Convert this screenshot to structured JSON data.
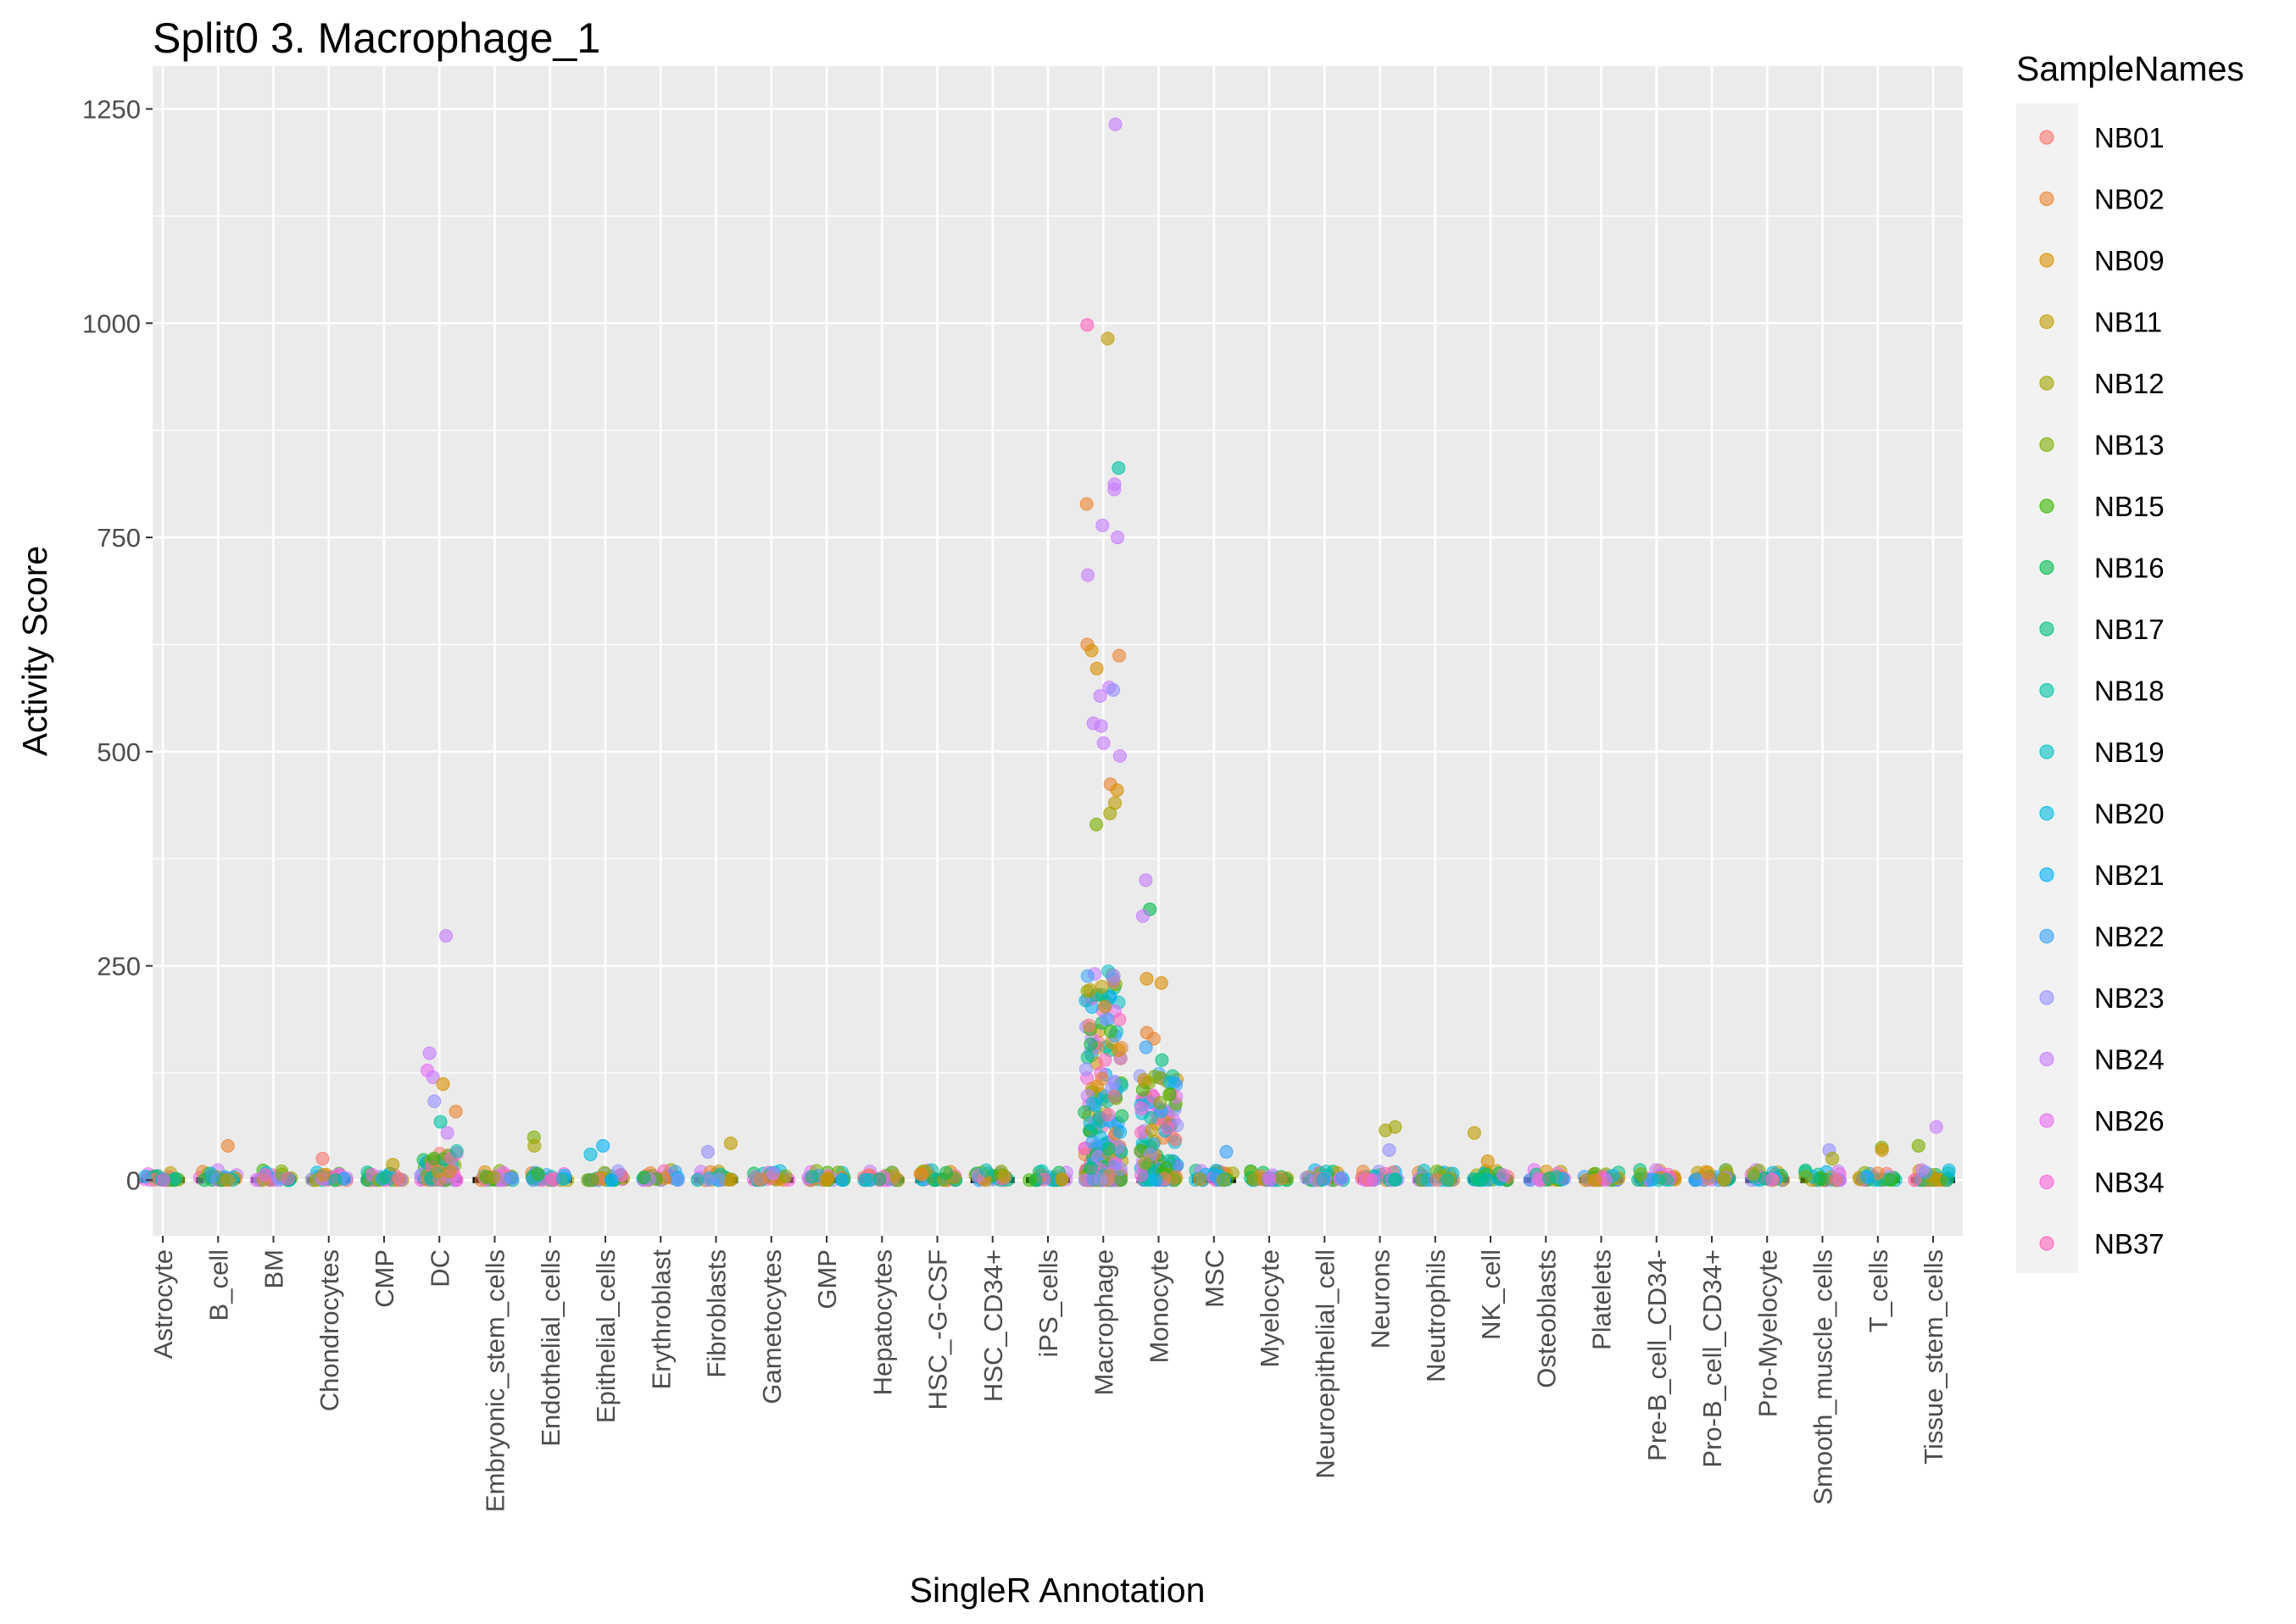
{
  "chart_data": {
    "type": "scatter",
    "title": "Split0 3. Macrophage_1",
    "xlabel": "SingleR Annotation",
    "ylabel": "Activity Score",
    "ylim": [
      -65,
      1300
    ],
    "yticks": [
      0,
      250,
      500,
      750,
      1000,
      1250
    ],
    "grid": true,
    "legend_placement": "right",
    "categories": [
      "Astrocyte",
      "B_cell",
      "BM",
      "Chondrocytes",
      "CMP",
      "DC",
      "Embryonic_stem_cells",
      "Endothelial_cells",
      "Epithelial_cells",
      "Erythroblast",
      "Fibroblasts",
      "Gametocytes",
      "GMP",
      "Hepatocytes",
      "HSC_-G-CSF",
      "HSC_CD34+",
      "iPS_cells",
      "Macrophage",
      "Monocyte",
      "MSC",
      "Myelocyte",
      "Neuroepithelial_cell",
      "Neurons",
      "Neutrophils",
      "NK_cell",
      "Osteoblasts",
      "Platelets",
      "Pre-B_cell_CD34-",
      "Pro-B_cell_CD34+",
      "Pro-Myelocyte",
      "Smooth_muscle_cells",
      "T_cells",
      "Tissue_stem_cells"
    ],
    "legend": {
      "title": "SampleNames",
      "entries": [
        {
          "name": "NB01",
          "color": "#F8766D"
        },
        {
          "name": "NB02",
          "color": "#EA8331"
        },
        {
          "name": "NB09",
          "color": "#D89000"
        },
        {
          "name": "NB11",
          "color": "#C09B00"
        },
        {
          "name": "NB12",
          "color": "#A3A500"
        },
        {
          "name": "NB13",
          "color": "#7CAE00"
        },
        {
          "name": "NB15",
          "color": "#39B600"
        },
        {
          "name": "NB16",
          "color": "#00BB4E"
        },
        {
          "name": "NB17",
          "color": "#00BF7D"
        },
        {
          "name": "NB18",
          "color": "#00C1A3"
        },
        {
          "name": "NB19",
          "color": "#00BFC4"
        },
        {
          "name": "NB20",
          "color": "#00BAE0"
        },
        {
          "name": "NB21",
          "color": "#00B0F6"
        },
        {
          "name": "NB22",
          "color": "#35A2FF"
        },
        {
          "name": "NB23",
          "color": "#9590FF"
        },
        {
          "name": "NB24",
          "color": "#C77CFF"
        },
        {
          "name": "NB26",
          "color": "#E76BF3"
        },
        {
          "name": "NB34",
          "color": "#FA62DB"
        },
        {
          "name": "NB37",
          "color": "#FF62BC"
        }
      ]
    },
    "median_ticks": "black horizontal median bar at 0 for every category",
    "points": [
      {
        "category": "DC",
        "series": "NB24",
        "y": 285
      },
      {
        "category": "DC",
        "series": "NB24",
        "y": 148
      },
      {
        "category": "DC",
        "series": "NB26",
        "y": 128
      },
      {
        "category": "DC",
        "series": "NB24",
        "y": 120
      },
      {
        "category": "DC",
        "series": "NB09",
        "y": 112
      },
      {
        "category": "DC",
        "series": "NB23",
        "y": 92
      },
      {
        "category": "DC",
        "series": "NB02",
        "y": 80
      },
      {
        "category": "DC",
        "series": "NB18",
        "y": 68
      },
      {
        "category": "DC",
        "series": "NB24",
        "y": 55
      },
      {
        "category": "B_cell",
        "series": "NB02",
        "y": 40
      },
      {
        "category": "Chondrocytes",
        "series": "NB01",
        "y": 25
      },
      {
        "category": "CMP",
        "series": "NB11",
        "y": 18
      },
      {
        "category": "Endothelial_cells",
        "series": "NB13",
        "y": 50
      },
      {
        "category": "Endothelial_cells",
        "series": "NB12",
        "y": 40
      },
      {
        "category": "Epithelial_cells",
        "series": "NB21",
        "y": 40
      },
      {
        "category": "Epithelial_cells",
        "series": "NB20",
        "y": 30
      },
      {
        "category": "Fibroblasts",
        "series": "NB11",
        "y": 43
      },
      {
        "category": "Fibroblasts",
        "series": "NB23",
        "y": 33
      },
      {
        "category": "Macrophage",
        "series": "NB24",
        "y": 1232
      },
      {
        "category": "Macrophage",
        "series": "NB37",
        "y": 998
      },
      {
        "category": "Macrophage",
        "series": "NB11",
        "y": 982
      },
      {
        "category": "Macrophage",
        "series": "NB18",
        "y": 831
      },
      {
        "category": "Macrophage",
        "series": "NB24",
        "y": 812
      },
      {
        "category": "Macrophage",
        "series": "NB24",
        "y": 806
      },
      {
        "category": "Macrophage",
        "series": "NB02",
        "y": 789
      },
      {
        "category": "Macrophage",
        "series": "NB24",
        "y": 764
      },
      {
        "category": "Macrophage",
        "series": "NB24",
        "y": 750
      },
      {
        "category": "Macrophage",
        "series": "NB24",
        "y": 706
      },
      {
        "category": "Macrophage",
        "series": "NB02",
        "y": 625
      },
      {
        "category": "Macrophage",
        "series": "NB09",
        "y": 618
      },
      {
        "category": "Macrophage",
        "series": "NB02",
        "y": 612
      },
      {
        "category": "Macrophage",
        "series": "NB09",
        "y": 597
      },
      {
        "category": "Macrophage",
        "series": "NB24",
        "y": 575
      },
      {
        "category": "Macrophage",
        "series": "NB23",
        "y": 572
      },
      {
        "category": "Macrophage",
        "series": "NB24",
        "y": 565
      },
      {
        "category": "Macrophage",
        "series": "NB24",
        "y": 533
      },
      {
        "category": "Macrophage",
        "series": "NB24",
        "y": 530
      },
      {
        "category": "Macrophage",
        "series": "NB24",
        "y": 510
      },
      {
        "category": "Macrophage",
        "series": "NB24",
        "y": 495
      },
      {
        "category": "Macrophage",
        "series": "NB02",
        "y": 462
      },
      {
        "category": "Macrophage",
        "series": "NB09",
        "y": 455
      },
      {
        "category": "Macrophage",
        "series": "NB11",
        "y": 440
      },
      {
        "category": "Macrophage",
        "series": "NB12",
        "y": 428
      },
      {
        "category": "Macrophage",
        "series": "NB13",
        "y": 415
      },
      {
        "category": "Monocyte",
        "series": "NB24",
        "y": 350
      },
      {
        "category": "Monocyte",
        "series": "NB16",
        "y": 316
      },
      {
        "category": "Monocyte",
        "series": "NB24",
        "y": 308
      },
      {
        "category": "Monocyte",
        "series": "NB09",
        "y": 235
      },
      {
        "category": "Monocyte",
        "series": "NB09",
        "y": 230
      },
      {
        "category": "Monocyte",
        "series": "NB02",
        "y": 172
      },
      {
        "category": "Monocyte",
        "series": "NB02",
        "y": 165
      },
      {
        "category": "Monocyte",
        "series": "NB22",
        "y": 155
      },
      {
        "category": "Monocyte",
        "series": "NB17",
        "y": 140
      },
      {
        "category": "Monocyte",
        "series": "NB15",
        "y": 100
      },
      {
        "category": "MSC",
        "series": "NB22",
        "y": 33
      },
      {
        "category": "Neurons",
        "series": "NB12",
        "y": 62
      },
      {
        "category": "Neurons",
        "series": "NB12",
        "y": 58
      },
      {
        "category": "Neurons",
        "series": "NB23",
        "y": 35
      },
      {
        "category": "NK_cell",
        "series": "NB11",
        "y": 55
      },
      {
        "category": "NK_cell",
        "series": "NB09",
        "y": 22
      },
      {
        "category": "Smooth_muscle_cells",
        "series": "NB23",
        "y": 35
      },
      {
        "category": "Smooth_muscle_cells",
        "series": "NB12",
        "y": 25
      },
      {
        "category": "T_cells",
        "series": "NB13",
        "y": 38
      },
      {
        "category": "T_cells",
        "series": "NB09",
        "y": 35
      },
      {
        "category": "Tissue_stem_cells",
        "series": "NB24",
        "y": 62
      },
      {
        "category": "Tissue_stem_cells",
        "series": "NB13",
        "y": 40
      }
    ]
  }
}
